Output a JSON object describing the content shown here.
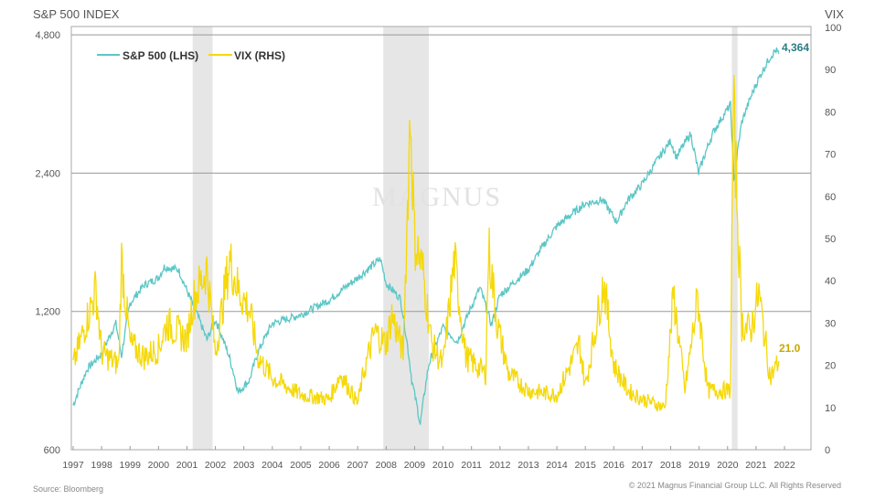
{
  "chart_data": {
    "type": "line",
    "title": "S&P 500 INDEX",
    "left_axis": {
      "label": "S&P 500 INDEX",
      "scale": "log",
      "ylim": [
        600,
        4800
      ],
      "ticks": [
        600,
        1200,
        2400,
        4800
      ],
      "tick_labels": [
        "600",
        "1,200",
        "2,400",
        "4,800"
      ]
    },
    "right_axis": {
      "label": "VIX",
      "ylim": [
        0,
        100
      ],
      "ticks": [
        0,
        10,
        20,
        30,
        40,
        50,
        60,
        70,
        80,
        90,
        100
      ],
      "tick_labels": [
        "0",
        "10",
        "20",
        "30",
        "40",
        "50",
        "60",
        "70",
        "80",
        "90",
        "100"
      ]
    },
    "x_ticks": [
      "1997",
      "1998",
      "1999",
      "2000",
      "2001",
      "2002",
      "2003",
      "2004",
      "2005",
      "2006",
      "2007",
      "2008",
      "2009",
      "2010",
      "2011",
      "2012",
      "2013",
      "2014",
      "2015",
      "2016",
      "2017",
      "2018",
      "2019",
      "2020",
      "2021",
      "2022"
    ],
    "xlim": [
      1997,
      2022.8
    ],
    "legend": {
      "placement": "top-left",
      "entries": [
        "S&P 500 (LHS)",
        "VIX (RHS)"
      ]
    },
    "recessions": [
      [
        2001.2,
        2001.9
      ],
      [
        2007.9,
        2009.5
      ],
      [
        2020.15,
        2020.35
      ]
    ],
    "series": [
      {
        "name": "S&P 500 (LHS)",
        "color": "#5cc6c6",
        "axis": "left",
        "end_label": "4,364",
        "end_label_color": "#2a7d86",
        "x": [
          1997.0,
          1997.5,
          1998.0,
          1998.5,
          1998.7,
          1999.0,
          1999.5,
          2000.0,
          2000.2,
          2000.7,
          2001.0,
          2001.7,
          2002.0,
          2002.5,
          2002.8,
          2003.2,
          2003.5,
          2004.0,
          2005.0,
          2006.0,
          2007.0,
          2007.8,
          2008.0,
          2008.5,
          2008.9,
          2009.2,
          2009.5,
          2010.0,
          2010.5,
          2011.3,
          2011.7,
          2012.0,
          2013.0,
          2014.0,
          2015.0,
          2015.6,
          2016.1,
          2016.5,
          2017.0,
          2018.0,
          2018.2,
          2018.7,
          2018.98,
          2019.5,
          2020.1,
          2020.22,
          2020.5,
          2021.0,
          2021.5,
          2021.7,
          2021.8
        ],
        "y": [
          750,
          900,
          970,
          1130,
          960,
          1250,
          1370,
          1420,
          1500,
          1480,
          1330,
          1040,
          1150,
          950,
          800,
          850,
          980,
          1130,
          1180,
          1270,
          1420,
          1560,
          1380,
          1280,
          850,
          680,
          920,
          1110,
          1030,
          1350,
          1120,
          1300,
          1480,
          1840,
          2060,
          2100,
          1880,
          2100,
          2270,
          2820,
          2600,
          2920,
          2400,
          2950,
          3380,
          2300,
          3100,
          3750,
          4300,
          4450,
          4364
        ]
      },
      {
        "name": "VIX (RHS)",
        "color": "#f5d90a",
        "axis": "right",
        "end_label": "21.0",
        "end_label_color": "#c9a800",
        "x": [
          1997.0,
          1997.8,
          1998.0,
          1998.6,
          1998.7,
          1999.0,
          1999.5,
          2000.0,
          2000.3,
          2001.0,
          2001.2,
          2001.7,
          2002.0,
          2002.5,
          2002.8,
          2003.2,
          2003.5,
          2004.0,
          2005.0,
          2006.0,
          2006.4,
          2007.0,
          2007.2,
          2007.6,
          2008.0,
          2008.2,
          2008.6,
          2008.85,
          2009.0,
          2009.3,
          2009.6,
          2010.0,
          2010.4,
          2010.8,
          2011.5,
          2011.6,
          2011.9,
          2012.3,
          2013.0,
          2014.0,
          2014.8,
          2015.0,
          2015.65,
          2016.0,
          2016.5,
          2017.0,
          2017.8,
          2018.1,
          2018.5,
          2018.95,
          2019.3,
          2020.1,
          2020.2,
          2020.5,
          2020.8,
          2021.1,
          2021.5,
          2021.8
        ],
        "y": [
          20,
          38,
          23,
          20,
          45,
          25,
          22,
          24,
          30,
          26,
          35,
          43,
          23,
          45,
          38,
          33,
          22,
          17,
          13,
          12,
          18,
          11,
          18,
          28,
          25,
          32,
          23,
          80,
          50,
          42,
          25,
          20,
          45,
          22,
          18,
          48,
          30,
          18,
          14,
          13,
          25,
          15,
          40,
          20,
          14,
          12,
          10,
          37,
          14,
          36,
          14,
          14,
          82,
          30,
          28,
          37,
          17,
          21
        ]
      }
    ]
  },
  "watermark": "MAGNUS",
  "footer": {
    "source": "Source: Bloomberg",
    "copyright": "© 2021 Magnus Financial Group LLC. All Rights Reserved"
  }
}
